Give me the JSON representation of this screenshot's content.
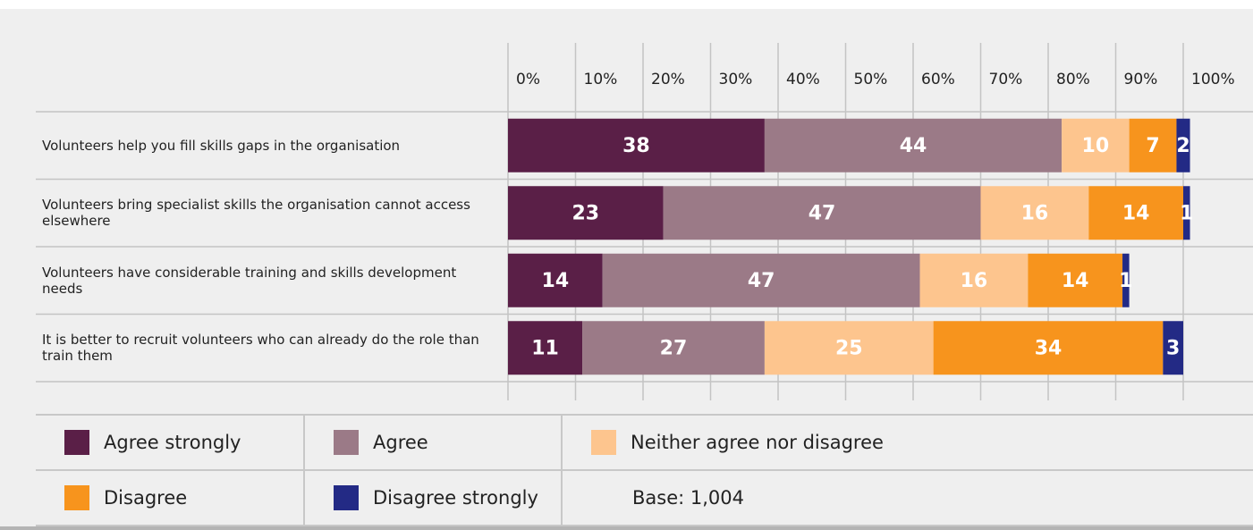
{
  "chart_data": {
    "type": "stacked-bar-horizontal",
    "categories": [
      "Volunteers help you fill skills gaps in the organisation",
      "Volunteers bring specialist skills the organisation cannot access elsewhere",
      "Volunteers have considerable training and skills development needs",
      "It is better to recruit volunteers who can already do the role than train them"
    ],
    "series": [
      {
        "name": "Agree strongly",
        "color": "#5a1f47",
        "values": [
          38,
          23,
          14,
          11
        ]
      },
      {
        "name": "Agree",
        "color": "#9b7a87",
        "values": [
          44,
          47,
          47,
          27
        ]
      },
      {
        "name": "Neither agree nor disagree",
        "color": "#fdc58e",
        "values": [
          10,
          16,
          16,
          25
        ]
      },
      {
        "name": "Disagree",
        "color": "#f7941d",
        "values": [
          7,
          14,
          14,
          34
        ]
      },
      {
        "name": "Disagree strongly",
        "color": "#232a85",
        "values": [
          2,
          1,
          1,
          3
        ]
      }
    ],
    "xlim": [
      0,
      100
    ],
    "xticks": [
      {
        "value": 0,
        "label": "0%"
      },
      {
        "value": 10,
        "label": "10%"
      },
      {
        "value": 20,
        "label": "20%"
      },
      {
        "value": 30,
        "label": "30%"
      },
      {
        "value": 40,
        "label": "40%"
      },
      {
        "value": 50,
        "label": "50%"
      },
      {
        "value": 60,
        "label": "60%"
      },
      {
        "value": 70,
        "label": "70%"
      },
      {
        "value": 80,
        "label": "80%"
      },
      {
        "value": 90,
        "label": "90%"
      },
      {
        "value": 100,
        "label": "100%"
      }
    ],
    "note": "Base: 1,004"
  }
}
